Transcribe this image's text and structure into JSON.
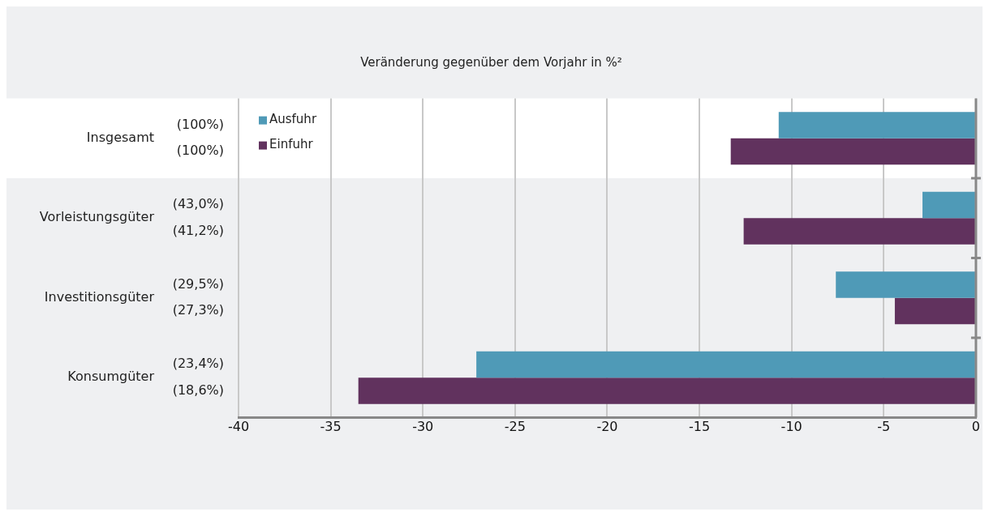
{
  "chart_data": {
    "type": "bar",
    "orientation": "horizontal",
    "title": "Veränderung gegenüber dem Vorjahr in %²",
    "categories": [
      "Insgesamt",
      "Vorleistungsgüter",
      "Investitionsgüter",
      "Konsumgüter"
    ],
    "series": [
      {
        "name": "Ausfuhr",
        "color": "#4f9ab7",
        "values": [
          -10.7,
          -2.9,
          -7.6,
          -27.1
        ]
      },
      {
        "name": "Einfuhr",
        "color": "#61325e",
        "values": [
          -13.3,
          -12.6,
          -4.4,
          -33.5
        ]
      }
    ],
    "xlim": [
      -40,
      0
    ],
    "xticks": [
      -40,
      -35,
      -30,
      -25,
      -20,
      -15,
      -10,
      -5,
      0
    ],
    "grid": "x",
    "legend": "top left",
    "bands": [
      {
        "axis": "y",
        "from": "Insgesamt",
        "to": "Insgesamt",
        "color": "#ffffff"
      }
    ],
    "annotations": [
      "(100%)",
      "(100%)",
      "(43,0%)",
      "(41,2%)",
      "(29,5%)",
      "(27,3%)",
      "(23,4%)",
      "(18,6%)"
    ]
  }
}
